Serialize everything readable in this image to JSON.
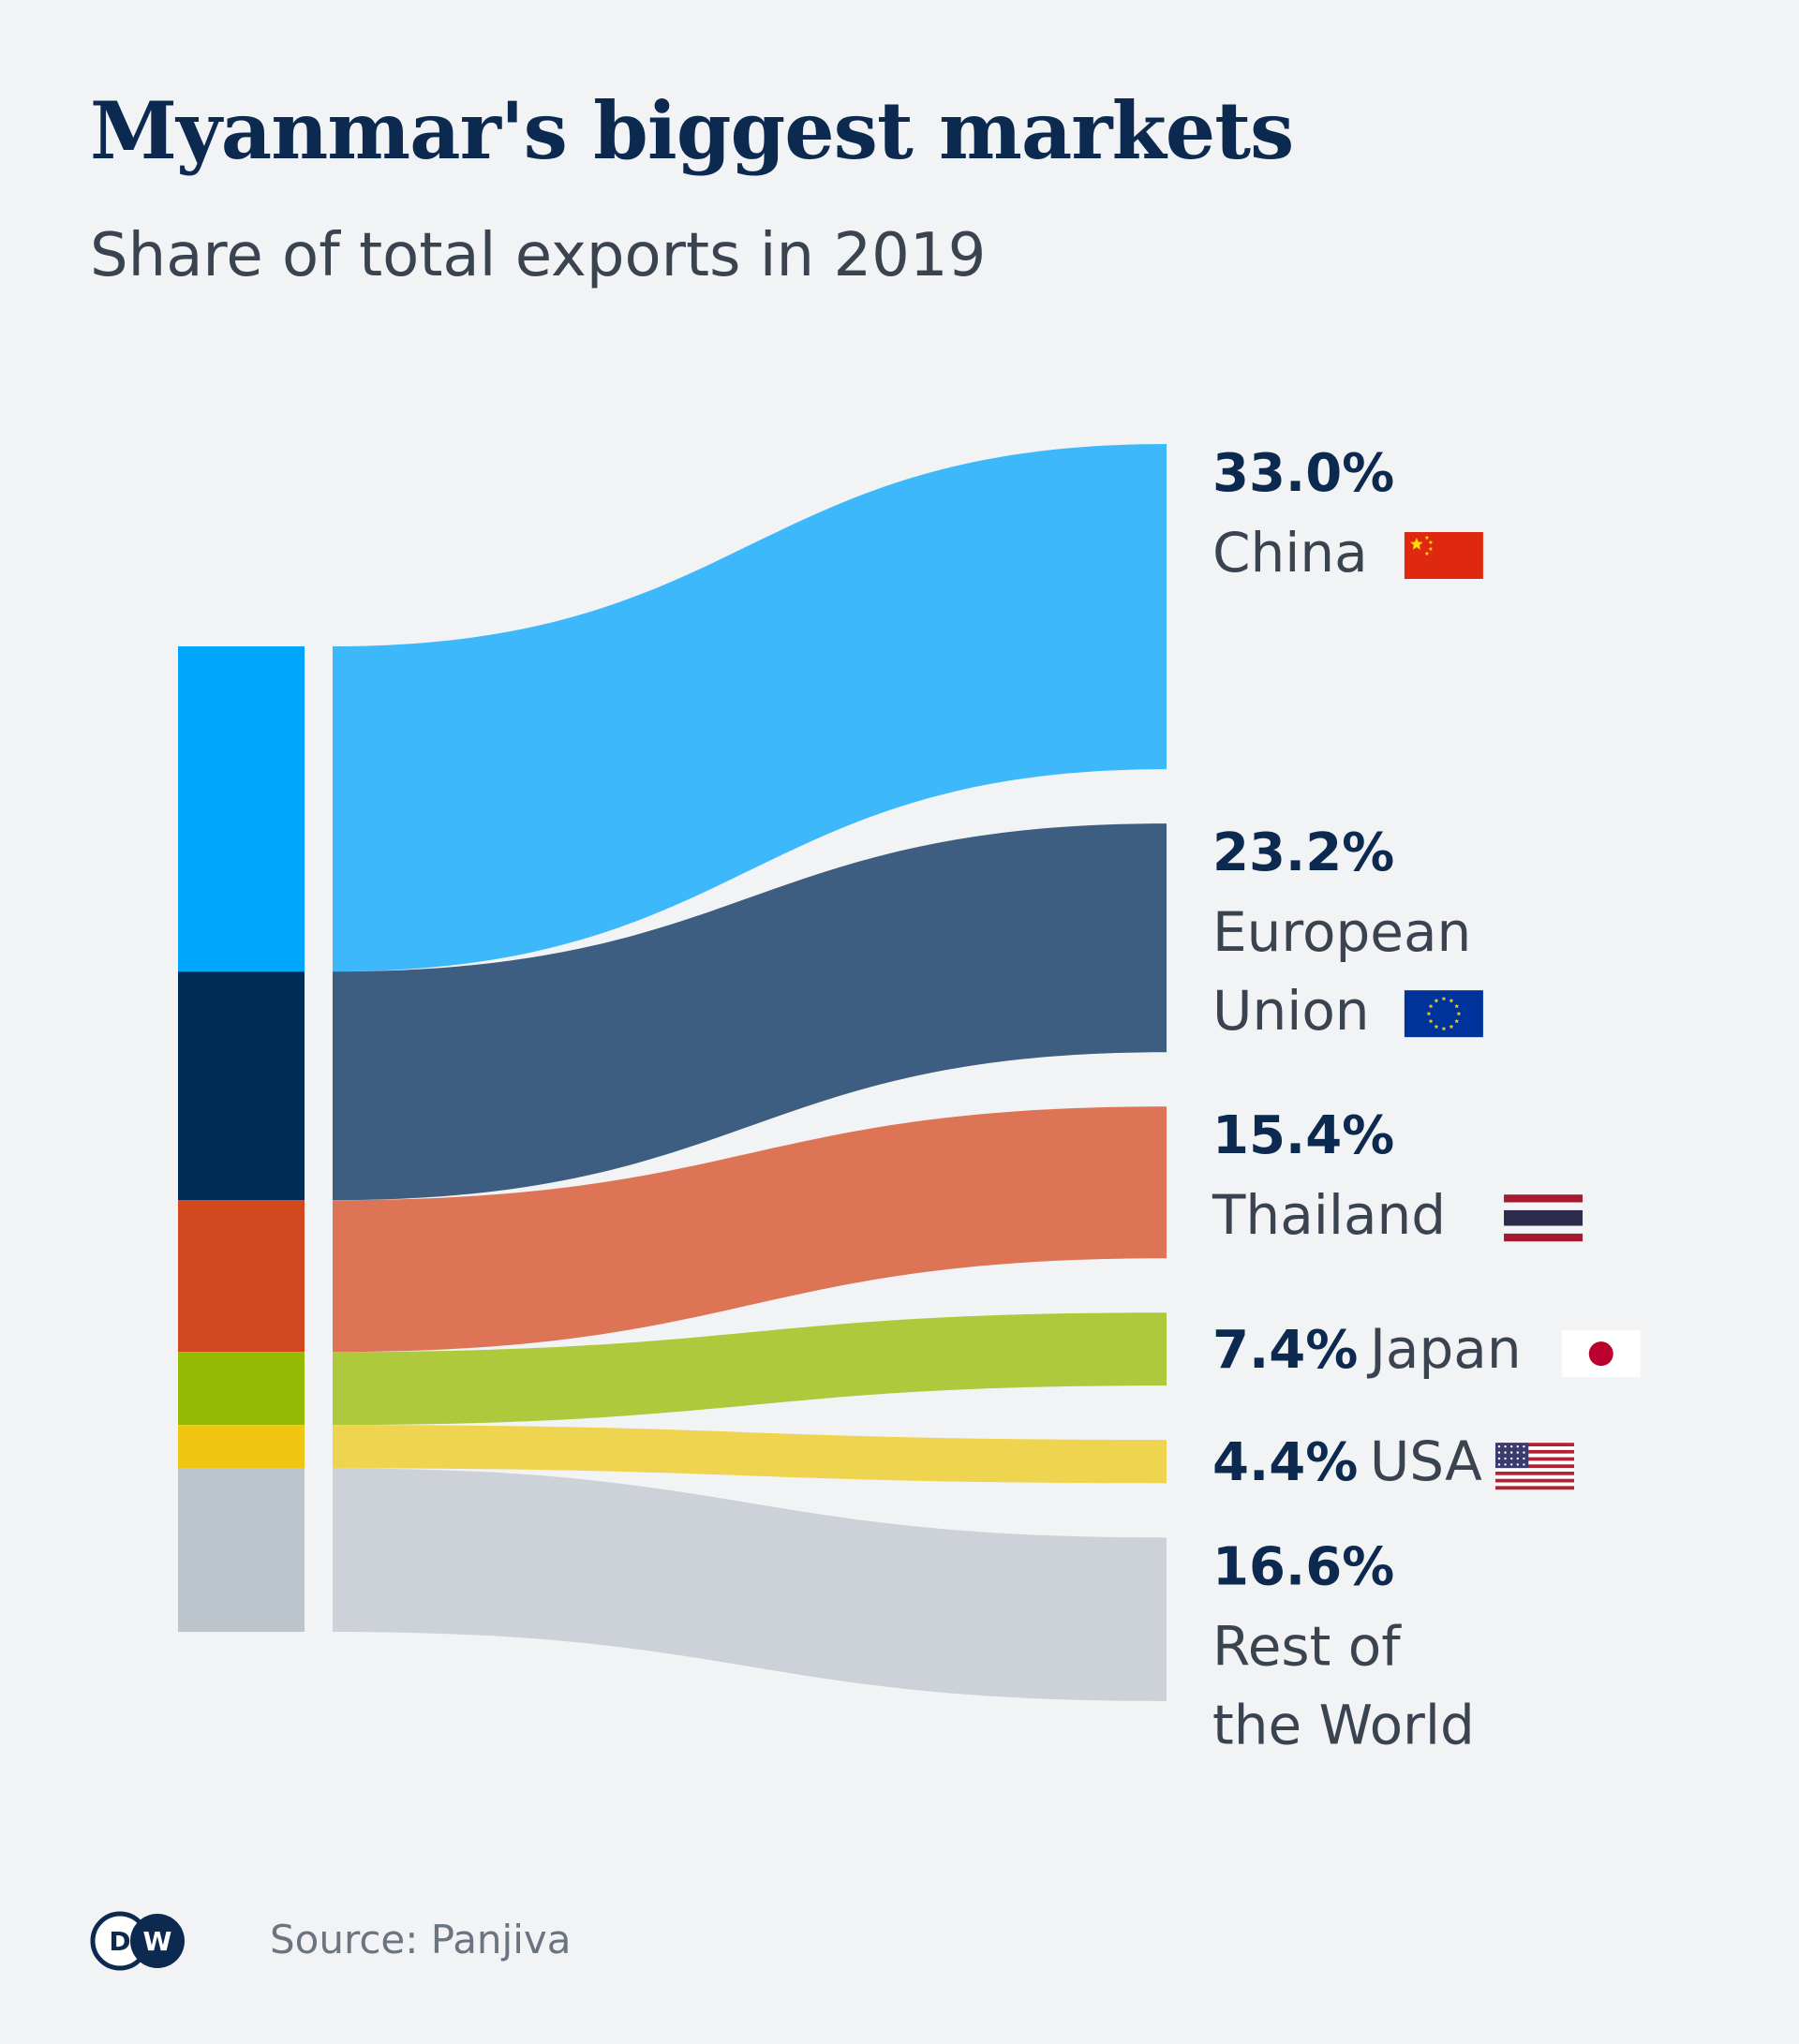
{
  "title": "Myanmar's biggest markets",
  "subtitle": "Share of total exports in 2019",
  "source": "Source: Panjiva",
  "logo_text": "DW",
  "chart_data": {
    "type": "sankey",
    "title": "Myanmar's biggest markets",
    "subtitle": "Share of total exports in 2019",
    "unit": "%",
    "series": [
      {
        "name": "China",
        "value": 33.0,
        "label": "33.0%",
        "name_lines": [
          "China"
        ],
        "flag": "china-flag-icon",
        "color": "#3db8fa",
        "bar_color": "#00a6fb"
      },
      {
        "name": "European Union",
        "value": 23.2,
        "label": "23.2%",
        "name_lines": [
          "European",
          "Union"
        ],
        "flag": "eu-flag-icon",
        "color": "#3d5e80",
        "bar_color": "#002d58"
      },
      {
        "name": "Thailand",
        "value": 15.4,
        "label": "15.4%",
        "name_lines": [
          "Thailand"
        ],
        "flag": "thailand-flag-icon",
        "color": "#dd7456",
        "bar_color": "#d3491f"
      },
      {
        "name": "Japan",
        "value": 7.4,
        "label": "7.4%",
        "name_lines": [
          "Japan"
        ],
        "flag": "japan-flag-icon",
        "color": "#aec93c",
        "bar_color": "#96bb04"
      },
      {
        "name": "USA",
        "value": 4.4,
        "label": "4.4%",
        "name_lines": [
          "USA"
        ],
        "flag": "usa-flag-icon",
        "color": "#efd44f",
        "bar_color": "#f0c613"
      },
      {
        "name": "Rest of the World",
        "value": 16.6,
        "label": "16.6%",
        "name_lines": [
          "Rest of",
          "the World"
        ],
        "flag": "",
        "color": "#cdd2d9",
        "bar_color": "#bdc5cc"
      }
    ]
  }
}
